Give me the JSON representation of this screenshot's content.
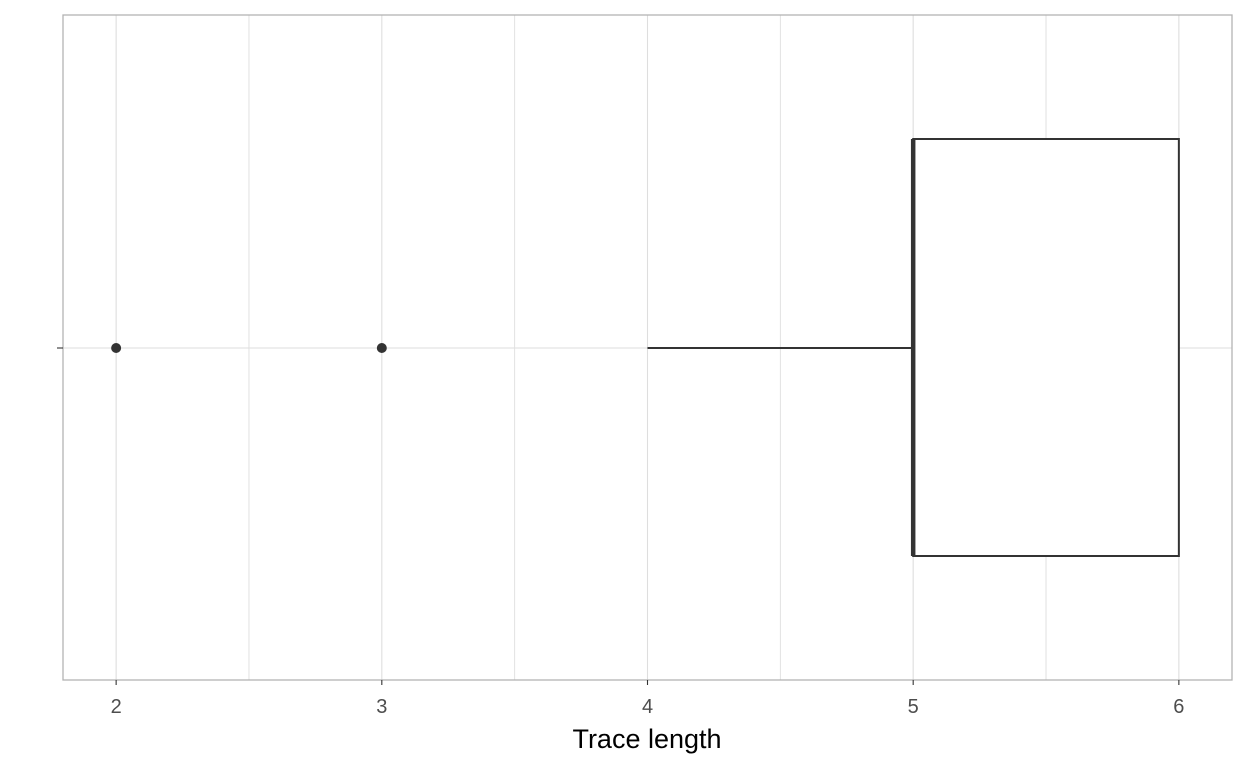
{
  "chart_data": {
    "type": "boxplot",
    "orientation": "horizontal",
    "title": "",
    "xlabel": "Trace length",
    "ylabel": "",
    "xlim": [
      1.8,
      6.2
    ],
    "x_ticks": [
      2,
      3,
      4,
      5,
      6
    ],
    "x_tick_labels": [
      "2",
      "3",
      "4",
      "5",
      "6"
    ],
    "grid": true,
    "legend": "none",
    "box": {
      "whisker_low": 4,
      "q1": 5,
      "median": 5,
      "q3": 6,
      "whisker_high": 6
    },
    "outliers": [
      2,
      3
    ],
    "colors": {
      "box_stroke": "#333333",
      "box_fill": "#ffffff",
      "grid": "#dedede",
      "panel_border": "#b3b3b3",
      "tick_text": "#4d4d4d",
      "title_text": "#000000"
    }
  }
}
